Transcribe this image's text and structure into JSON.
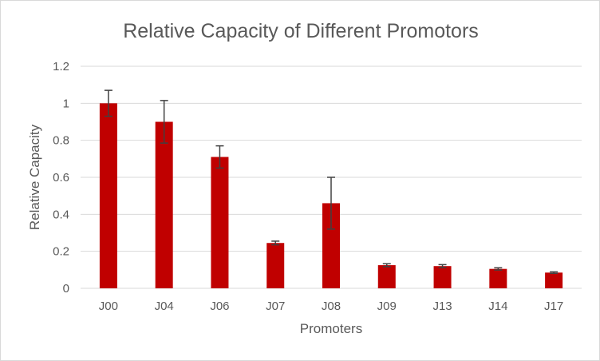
{
  "chart_data": {
    "type": "bar",
    "title": "Relative Capacity of Different Promotors",
    "xlabel": "Promoters",
    "ylabel": "Relative Capacity",
    "ylim": [
      0,
      1.2
    ],
    "yticks": [
      "0",
      "0.2",
      "0.4",
      "0.6",
      "0.8",
      "1",
      "1.2"
    ],
    "grid": true,
    "legend": "none",
    "categories": [
      "J00",
      "J04",
      "J06",
      "J07",
      "J08",
      "J09",
      "J13",
      "J14",
      "J17"
    ],
    "values": [
      1.0,
      0.9,
      0.71,
      0.245,
      0.46,
      0.125,
      0.12,
      0.105,
      0.085
    ],
    "errors": [
      0.07,
      0.115,
      0.06,
      0.01,
      0.14,
      0.008,
      0.008,
      0.006,
      0.004
    ],
    "colors": {
      "bar": "#c00000",
      "error_bar": "#404040",
      "grid": "#d9d9d9",
      "text": "#595959"
    }
  }
}
